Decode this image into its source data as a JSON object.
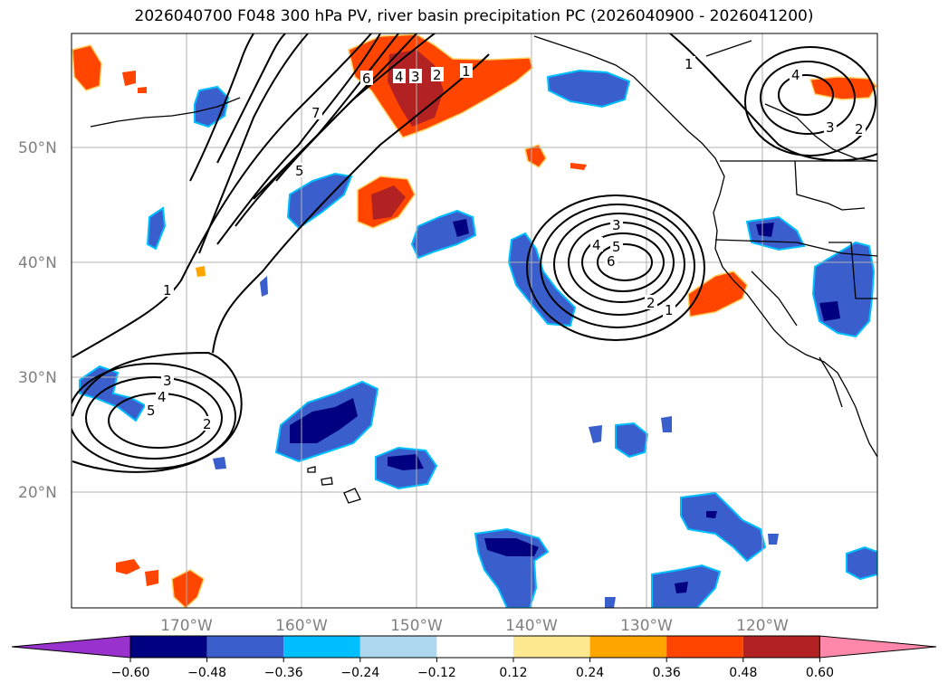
{
  "title": "2026040700 F048 300 hPa PV, river basin precipitation PC (2026040900 - 2026041200)",
  "map": {
    "lat_labels": [
      "50°N",
      "40°N",
      "30°N",
      "20°N"
    ],
    "lon_labels": [
      "170°W",
      "160°W",
      "150°W",
      "140°W",
      "130°W",
      "120°W"
    ],
    "lon_extent": [
      -180,
      -110
    ],
    "lat_extent": [
      10,
      60
    ],
    "pv_contour_labels": {
      "west_low": [
        "3",
        "4",
        "5",
        "2"
      ],
      "north_trough": [
        "7",
        "6",
        "5",
        "4",
        "3",
        "2",
        "1",
        "1"
      ],
      "central_low": [
        "3",
        "4",
        "5",
        "6",
        "2",
        "1"
      ],
      "ne_low": [
        "4",
        "3",
        "2",
        "1"
      ]
    }
  },
  "colorbar": {
    "ticks": [
      "−0.60",
      "−0.48",
      "−0.36",
      "−0.24",
      "−0.12",
      "0.12",
      "0.24",
      "0.36",
      "0.48",
      "0.60"
    ],
    "colors": [
      "#9932cc",
      "#000080",
      "#3a5fcd",
      "#00bfff",
      "#add8f0",
      "#ffffff",
      "#ffe990",
      "#ffa500",
      "#ff4500",
      "#b22222",
      "#ff88aa"
    ]
  }
}
